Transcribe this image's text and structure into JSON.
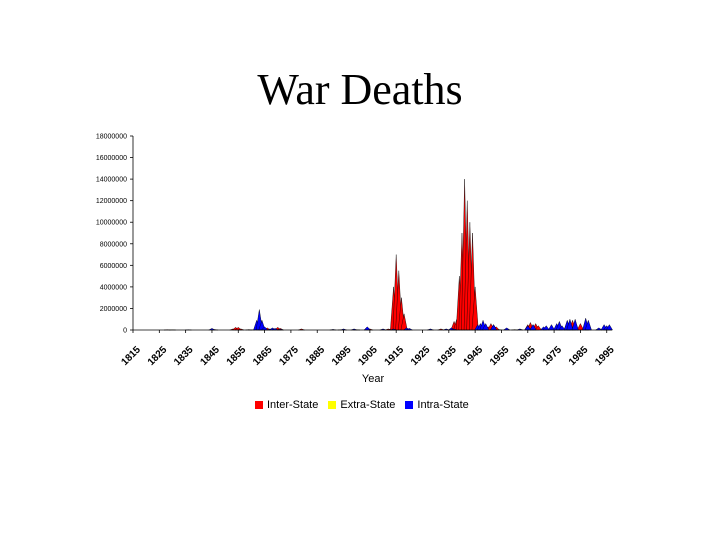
{
  "title": "War Deaths",
  "chart_data": {
    "type": "area",
    "xlabel": "Year",
    "ylabel": "",
    "ylim": [
      0,
      18000000
    ],
    "y_ticks": [
      0,
      2000000,
      4000000,
      6000000,
      8000000,
      10000000,
      12000000,
      14000000,
      16000000,
      18000000
    ],
    "x_tick_labels": [
      "1815",
      "1825",
      "1835",
      "1845",
      "1855",
      "1865",
      "1875",
      "1885",
      "1895",
      "1905",
      "1915",
      "1925",
      "1935",
      "1945",
      "1955",
      "1965",
      "1975",
      "1985",
      "1995"
    ],
    "xlim": [
      1815,
      1997
    ],
    "legend_position": "bottom",
    "grid": false,
    "series": [
      {
        "name": "Inter-State",
        "color": "#ff0000",
        "points": [
          [
            1828,
            30000
          ],
          [
            1846,
            50000
          ],
          [
            1853,
            100000
          ],
          [
            1854,
            250000
          ],
          [
            1855,
            250000
          ],
          [
            1856,
            100000
          ],
          [
            1859,
            40000
          ],
          [
            1864,
            150000
          ],
          [
            1866,
            200000
          ],
          [
            1870,
            250000
          ],
          [
            1871,
            150000
          ],
          [
            1879,
            100000
          ],
          [
            1894,
            30000
          ],
          [
            1904,
            150000
          ],
          [
            1905,
            100000
          ],
          [
            1912,
            100000
          ],
          [
            1913,
            100000
          ],
          [
            1914,
            4000000
          ],
          [
            1915,
            7000000
          ],
          [
            1916,
            5500000
          ],
          [
            1917,
            3000000
          ],
          [
            1918,
            1500000
          ],
          [
            1919,
            100000
          ],
          [
            1932,
            100000
          ],
          [
            1937,
            800000
          ],
          [
            1938,
            1000000
          ],
          [
            1939,
            5000000
          ],
          [
            1940,
            9000000
          ],
          [
            1941,
            14000000
          ],
          [
            1942,
            12000000
          ],
          [
            1943,
            10000000
          ],
          [
            1944,
            9000000
          ],
          [
            1945,
            4000000
          ],
          [
            1950,
            300000
          ],
          [
            1951,
            600000
          ],
          [
            1952,
            500000
          ],
          [
            1953,
            300000
          ],
          [
            1965,
            500000
          ],
          [
            1966,
            700000
          ],
          [
            1967,
            500000
          ],
          [
            1968,
            600000
          ],
          [
            1969,
            400000
          ],
          [
            1980,
            800000
          ],
          [
            1982,
            900000
          ],
          [
            1983,
            800000
          ],
          [
            1985,
            600000
          ],
          [
            1987,
            500000
          ]
        ]
      },
      {
        "name": "Extra-State",
        "color": "#ffff00",
        "points": [
          [
            1830,
            20000
          ],
          [
            1860,
            20000
          ],
          [
            1900,
            30000
          ],
          [
            1947,
            50000
          ],
          [
            1954,
            50000
          ],
          [
            1960,
            40000
          ]
        ]
      },
      {
        "name": "Intra-State",
        "color": "#0000ff",
        "points": [
          [
            1836,
            30000
          ],
          [
            1845,
            150000
          ],
          [
            1862,
            900000
          ],
          [
            1863,
            1900000
          ],
          [
            1864,
            900000
          ],
          [
            1865,
            300000
          ],
          [
            1867,
            100000
          ],
          [
            1868,
            200000
          ],
          [
            1869,
            150000
          ],
          [
            1871,
            80000
          ],
          [
            1891,
            60000
          ],
          [
            1895,
            100000
          ],
          [
            1899,
            100000
          ],
          [
            1904,
            300000
          ],
          [
            1910,
            100000
          ],
          [
            1914,
            100000
          ],
          [
            1919,
            200000
          ],
          [
            1920,
            150000
          ],
          [
            1928,
            100000
          ],
          [
            1934,
            100000
          ],
          [
            1936,
            200000
          ],
          [
            1937,
            100000
          ],
          [
            1946,
            500000
          ],
          [
            1947,
            600000
          ],
          [
            1948,
            900000
          ],
          [
            1949,
            600000
          ],
          [
            1952,
            500000
          ],
          [
            1957,
            200000
          ],
          [
            1962,
            100000
          ],
          [
            1965,
            400000
          ],
          [
            1967,
            500000
          ],
          [
            1971,
            300000
          ],
          [
            1972,
            400000
          ],
          [
            1974,
            500000
          ],
          [
            1976,
            600000
          ],
          [
            1977,
            800000
          ],
          [
            1978,
            400000
          ],
          [
            1980,
            900000
          ],
          [
            1981,
            1000000
          ],
          [
            1983,
            1000000
          ],
          [
            1987,
            1100000
          ],
          [
            1988,
            900000
          ],
          [
            1992,
            200000
          ],
          [
            1994,
            500000
          ],
          [
            1995,
            400000
          ],
          [
            1996,
            500000
          ]
        ]
      }
    ]
  }
}
